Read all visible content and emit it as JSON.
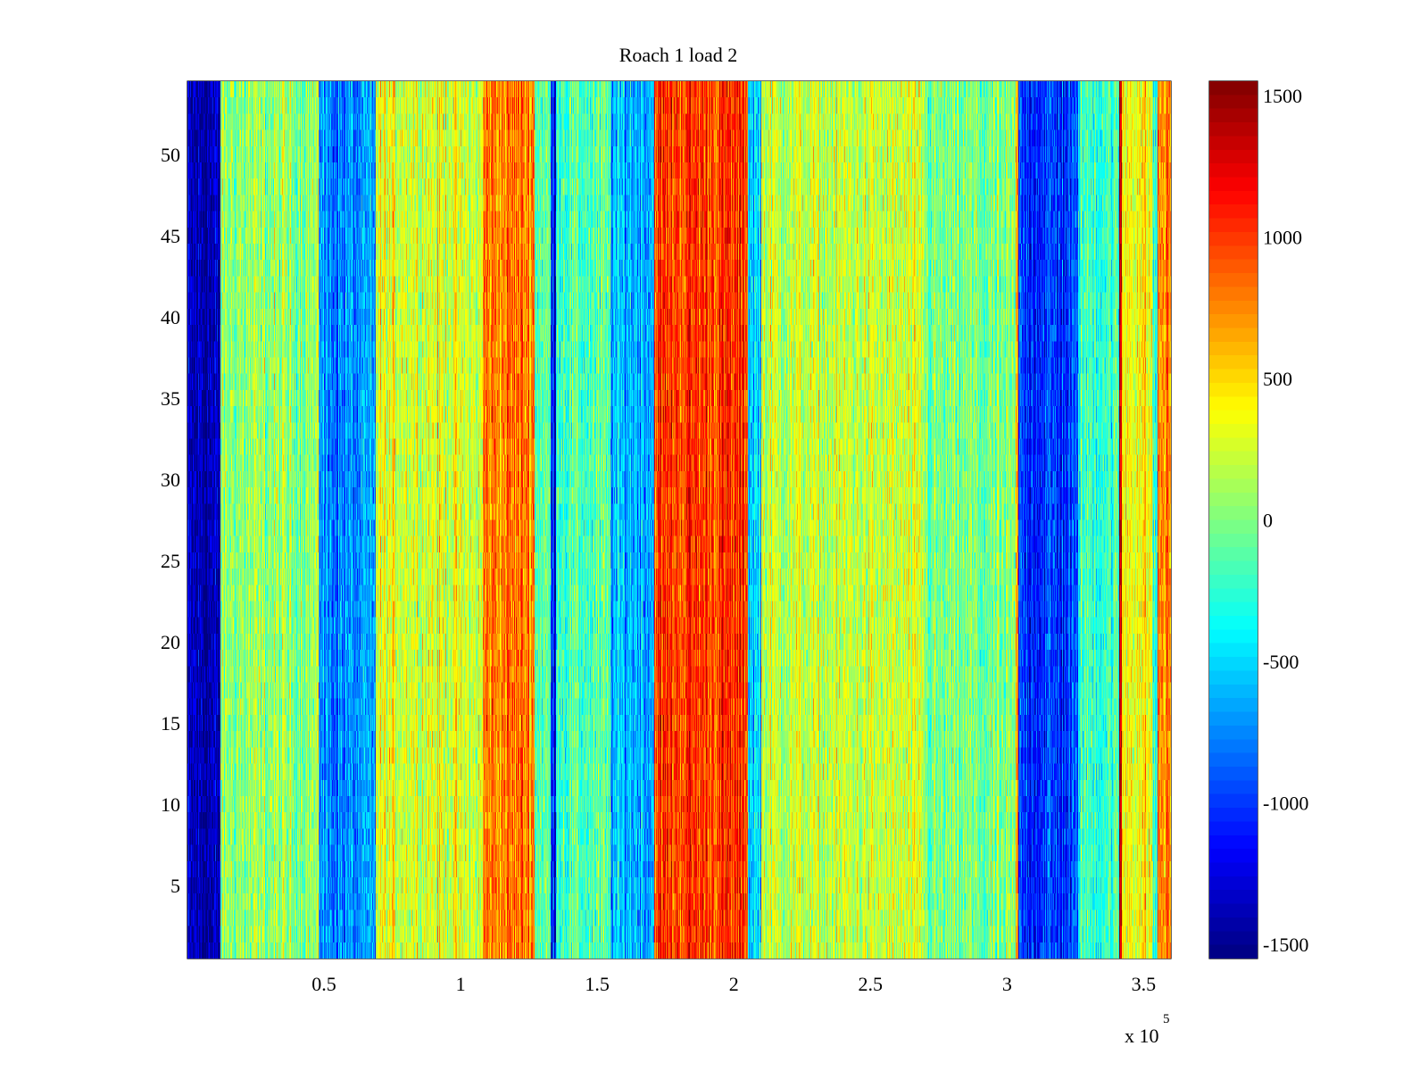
{
  "chart_data": {
    "type": "heatmap",
    "title": "Roach 1 load 2",
    "xlabel": "",
    "ylabel": "",
    "xlim": [
      0,
      360000
    ],
    "ylim": [
      0.5,
      54.5
    ],
    "x_ticks": [
      50000,
      100000,
      150000,
      200000,
      250000,
      300000,
      350000
    ],
    "x_tick_labels": [
      "0.5",
      "1",
      "1.5",
      "2",
      "2.5",
      "3",
      "3.5"
    ],
    "x_exponent_label": {
      "base": "x 10",
      "power": "5"
    },
    "y_ticks": [
      5,
      10,
      15,
      20,
      25,
      30,
      35,
      40,
      45,
      50
    ],
    "y_tick_labels": [
      "5",
      "10",
      "15",
      "20",
      "25",
      "30",
      "35",
      "40",
      "45",
      "50"
    ],
    "rows": 54,
    "colormap": "jet",
    "clim": [
      -1550,
      1550
    ],
    "colorbar": {
      "ticks": [
        1500,
        1000,
        500,
        0,
        -500,
        -1000,
        -1500
      ],
      "tick_labels": [
        "1500",
        "1000",
        "500",
        "0",
        "-500",
        "-1000",
        "-1500"
      ]
    },
    "column_profile": [
      {
        "x_start": 0,
        "x_end": 12000,
        "value": -1400
      },
      {
        "x_start": 12000,
        "x_end": 48000,
        "value": 50
      },
      {
        "x_start": 48000,
        "x_end": 50000,
        "value": -600
      },
      {
        "x_start": 50000,
        "x_end": 69000,
        "value": -750
      },
      {
        "x_start": 69000,
        "x_end": 80000,
        "value": 300
      },
      {
        "x_start": 80000,
        "x_end": 100000,
        "value": 300
      },
      {
        "x_start": 100000,
        "x_end": 108000,
        "value": 200
      },
      {
        "x_start": 108000,
        "x_end": 127000,
        "value": 800
      },
      {
        "x_start": 127000,
        "x_end": 133000,
        "value": -100
      },
      {
        "x_start": 133000,
        "x_end": 135000,
        "value": -1100
      },
      {
        "x_start": 135000,
        "x_end": 155000,
        "value": -150
      },
      {
        "x_start": 155000,
        "x_end": 171000,
        "value": -600
      },
      {
        "x_start": 171000,
        "x_end": 205000,
        "value": 1000
      },
      {
        "x_start": 205000,
        "x_end": 210000,
        "value": -500
      },
      {
        "x_start": 210000,
        "x_end": 270000,
        "value": 200
      },
      {
        "x_start": 270000,
        "x_end": 303000,
        "value": -50
      },
      {
        "x_start": 303000,
        "x_end": 304000,
        "value": 700
      },
      {
        "x_start": 304000,
        "x_end": 326000,
        "value": -1000
      },
      {
        "x_start": 326000,
        "x_end": 341000,
        "value": -200
      },
      {
        "x_start": 341000,
        "x_end": 342000,
        "value": 1300
      },
      {
        "x_start": 342000,
        "x_end": 353000,
        "value": 400
      },
      {
        "x_start": 353000,
        "x_end": 355000,
        "value": -200
      },
      {
        "x_start": 355000,
        "x_end": 360000,
        "value": 750
      }
    ]
  }
}
